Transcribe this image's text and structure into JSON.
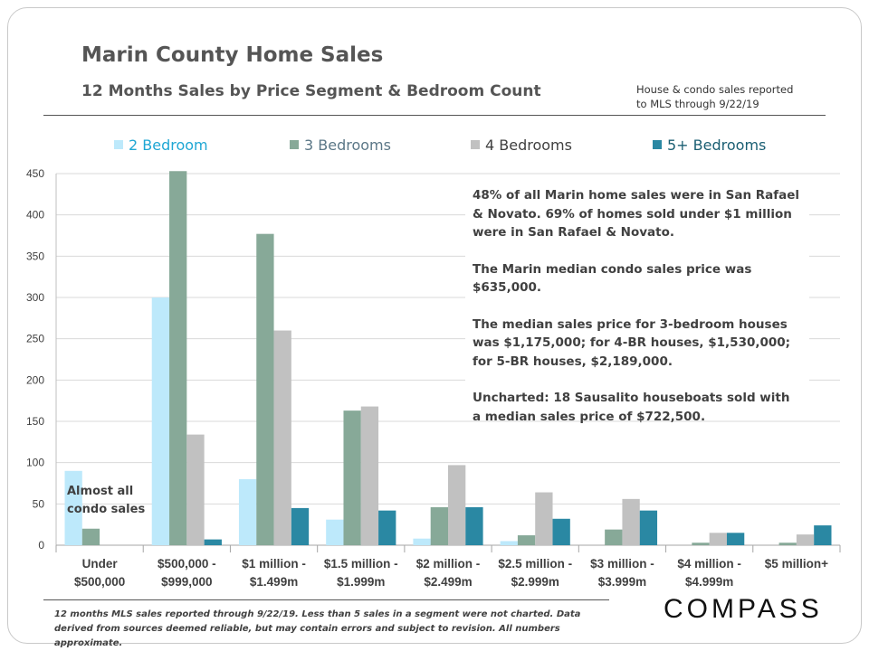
{
  "header": {
    "title": "Marin County Home Sales",
    "subtitle": "12 Months Sales by Price Segment & Bedroom Count",
    "note_line1": "House & condo sales reported",
    "note_line2": "to MLS through 9/22/19"
  },
  "colors": {
    "bed2": "#bde9fb",
    "bed3": "#87a998",
    "bed4": "#c1c1c1",
    "bed5": "#2a88a3",
    "legend2_text": "#1fa7d4",
    "legend3_text": "#5b7787",
    "legend4_text": "#404040",
    "legend5_text": "#1b5f73"
  },
  "insights": {
    "p1": "48% of all Marin home sales were in San Rafael & Novato. 69% of homes sold under $1 million were in San Rafael & Novato.",
    "p2": "The Marin median condo sales price was $635,000.",
    "p3": "The median sales price for 3-bedroom houses was $1,175,000; for 4-BR houses, $1,530,000; for 5-BR houses, $2,189,000.",
    "p4": "Uncharted: 18 Sausalito houseboats sold with a median sales price of $722,500."
  },
  "condo_note": "Almost all condo sales",
  "footnote": "12 months MLS sales reported through 9/22/19. Less than 5 sales in a segment were not charted. Data derived from sources deemed reliable, but may contain errors and subject to revision. All numbers approximate.",
  "brand": "COMPASS",
  "chart_data": {
    "type": "bar",
    "title": "12 Months Sales by Price Segment & Bedroom Count",
    "xlabel": "",
    "ylabel": "",
    "ylim": [
      0,
      450
    ],
    "yticks": [
      0,
      50,
      100,
      150,
      200,
      250,
      300,
      350,
      400,
      450
    ],
    "grid": true,
    "legend": "top",
    "categories": [
      [
        "Under",
        "$500,000"
      ],
      [
        "$500,000 -",
        "$999,000"
      ],
      [
        "$1 million -",
        "$1.499m"
      ],
      [
        "$1.5 million -",
        "$1.999m"
      ],
      [
        "$2 million -",
        "$2.499m"
      ],
      [
        "$2.5 million -",
        "$2.999m"
      ],
      [
        "$3 million -",
        "$3.999m"
      ],
      [
        "$4 million -",
        "$4.999m"
      ],
      [
        "$5 million+"
      ]
    ],
    "series": [
      {
        "name": "2 Bedroom",
        "color_key": "bed2",
        "values": [
          90,
          300,
          80,
          31,
          8,
          5,
          null,
          null,
          null
        ]
      },
      {
        "name": "3 Bedrooms",
        "color_key": "bed3",
        "values": [
          20,
          453,
          377,
          163,
          46,
          12,
          19,
          3,
          3
        ]
      },
      {
        "name": "4 Bedrooms",
        "color_key": "bed4",
        "values": [
          null,
          134,
          260,
          168,
          97,
          64,
          56,
          15,
          13
        ]
      },
      {
        "name": "5+ Bedrooms",
        "color_key": "bed5",
        "values": [
          null,
          7,
          45,
          42,
          46,
          32,
          42,
          15,
          24
        ]
      }
    ]
  }
}
